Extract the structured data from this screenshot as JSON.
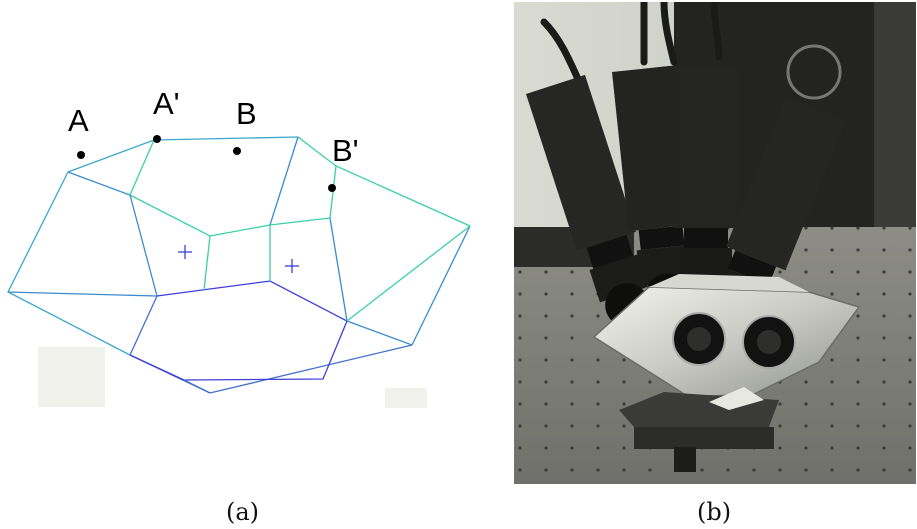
{
  "panel_a": {
    "point_labels": [
      "A",
      "A'",
      "B",
      "B'"
    ],
    "colors": {
      "edge_green": "#3ad0a6",
      "edge_blue": "#3f6fcf",
      "edge_deep_blue": "#3d3fd8",
      "marker": "#2a33d6",
      "patch": "#f1f1ec"
    }
  },
  "panel_b": {
    "description_icon": "multi-camera-rig-photo"
  },
  "captions": {
    "a": "(a)",
    "b": "(b)"
  }
}
